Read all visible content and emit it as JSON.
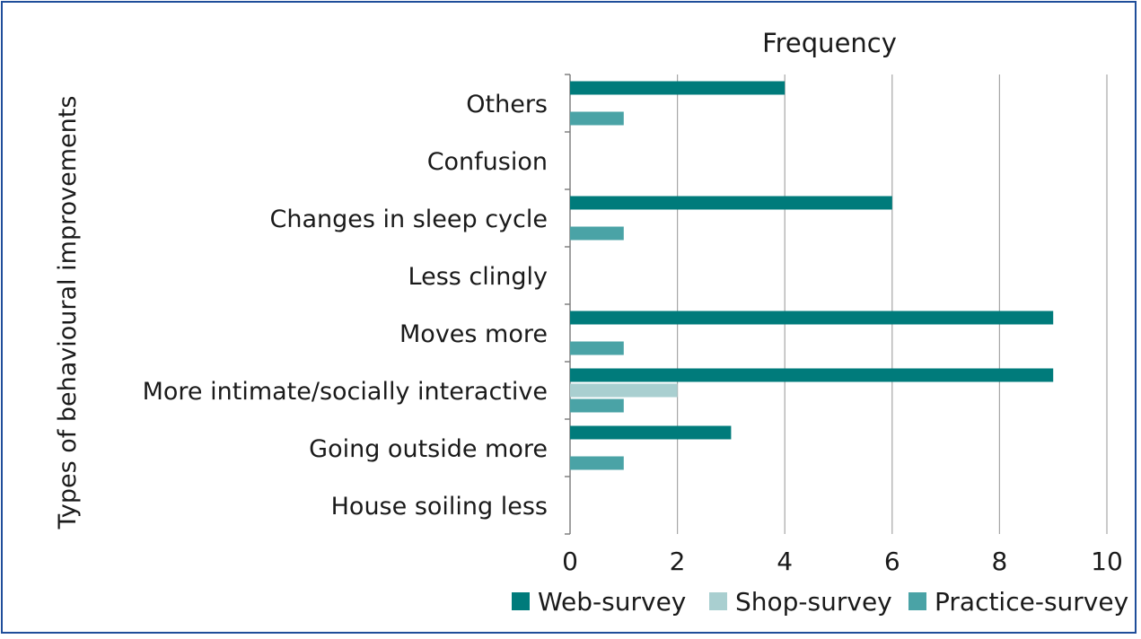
{
  "chart_data": {
    "type": "bar",
    "orientation": "horizontal",
    "title": "Frequency",
    "xlabel": "",
    "ylabel": "Types of behavioural improvements",
    "categories": [
      "Others",
      "Confusion",
      "Changes in sleep cycle",
      "Less clingly",
      "Moves more",
      "More intimate/socially interactive",
      "Going outside more",
      "House soiling less"
    ],
    "series": [
      {
        "name": "Web-survey",
        "color": "#007b7b",
        "values": [
          4,
          0,
          6,
          0,
          9,
          9,
          3,
          0
        ]
      },
      {
        "name": "Shop-survey",
        "color": "#a9cfd0",
        "values": [
          0,
          0,
          0,
          0,
          0,
          2,
          0,
          0
        ]
      },
      {
        "name": "Practice-survey",
        "color": "#4aa3a6",
        "values": [
          1,
          0,
          1,
          0,
          1,
          1,
          1,
          0
        ]
      }
    ],
    "xlim": [
      0,
      10
    ],
    "xticks": [
      0,
      2,
      4,
      6,
      8,
      10
    ],
    "grid": true,
    "legend_position": "bottom-right"
  }
}
